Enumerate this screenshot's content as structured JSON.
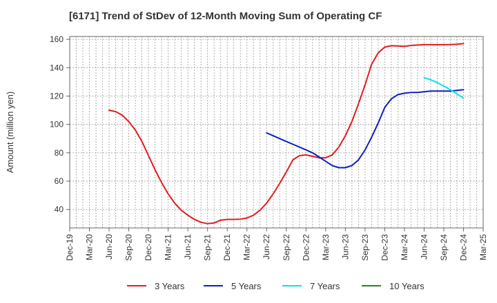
{
  "chart_data": {
    "type": "line",
    "title": "[6171]  Trend of StDev of 12-Month Moving Sum of Operating CF",
    "xlabel": "",
    "ylabel": "Amount (million yen)",
    "ylim": [
      27,
      162
    ],
    "yticks": [
      40,
      60,
      80,
      100,
      120,
      140,
      160
    ],
    "x_tick_labels": [
      "Dec-19",
      "Mar-20",
      "Jun-20",
      "Sep-20",
      "Dec-20",
      "Mar-21",
      "Jun-21",
      "Sep-21",
      "Dec-21",
      "Mar-22",
      "Jun-22",
      "Sep-22",
      "Dec-22",
      "Mar-23",
      "Jun-23",
      "Sep-23",
      "Dec-23",
      "Mar-24",
      "Jun-24",
      "Sep-24",
      "Dec-24",
      "Mar-25"
    ],
    "x_start": "2019-12",
    "x_end": "2025-03",
    "grid": true,
    "legend_position": "bottom",
    "series": [
      {
        "name": "3 Years",
        "color": "#e31a1c",
        "x": [
          "2020-06",
          "2020-07",
          "2020-08",
          "2020-09",
          "2020-10",
          "2020-11",
          "2020-12",
          "2021-01",
          "2021-02",
          "2021-03",
          "2021-04",
          "2021-05",
          "2021-06",
          "2021-07",
          "2021-08",
          "2021-09",
          "2021-10",
          "2021-11",
          "2021-12",
          "2022-01",
          "2022-02",
          "2022-03",
          "2022-04",
          "2022-05",
          "2022-06",
          "2022-07",
          "2022-08",
          "2022-09",
          "2022-10",
          "2022-11",
          "2022-12",
          "2023-01",
          "2023-02",
          "2023-03",
          "2023-04",
          "2023-05",
          "2023-06",
          "2023-07",
          "2023-08",
          "2023-09",
          "2023-10",
          "2023-11",
          "2023-12",
          "2024-01",
          "2024-02",
          "2024-03",
          "2024-04",
          "2024-05",
          "2024-06",
          "2024-07",
          "2024-08",
          "2024-09",
          "2024-10",
          "2024-11",
          "2024-12"
        ],
        "values": [
          110,
          109,
          106.5,
          102,
          96,
          88,
          78,
          68,
          59,
          51,
          44.5,
          39.5,
          36,
          33,
          31,
          30,
          30.5,
          32.5,
          33,
          33,
          33.2,
          34,
          36,
          39.5,
          44.5,
          51,
          58.5,
          66.5,
          75,
          78,
          78.5,
          77.5,
          76.5,
          76.5,
          78.5,
          84,
          92,
          102,
          114.5,
          128,
          142.5,
          150.5,
          154.5,
          155.5,
          155.3,
          155,
          155.7,
          156,
          156.2,
          156.2,
          156.2,
          156.2,
          156.3,
          156.5,
          157
        ]
      },
      {
        "name": "5 Years",
        "color": "#0a1fbf",
        "x": [
          "2022-06",
          "2022-07",
          "2022-08",
          "2022-09",
          "2022-10",
          "2022-11",
          "2022-12",
          "2023-01",
          "2023-02",
          "2023-03",
          "2023-04",
          "2023-05",
          "2023-06",
          "2023-07",
          "2023-08",
          "2023-09",
          "2023-10",
          "2023-11",
          "2023-12",
          "2024-01",
          "2024-02",
          "2024-03",
          "2024-04",
          "2024-05",
          "2024-06",
          "2024-07",
          "2024-08",
          "2024-09",
          "2024-10",
          "2024-11",
          "2024-12"
        ],
        "values": [
          94,
          92,
          90,
          88,
          86,
          84,
          82,
          80,
          77,
          74,
          71,
          69.5,
          69.5,
          71,
          75,
          82,
          91,
          101,
          112,
          118,
          121,
          122,
          122.5,
          122.5,
          123,
          123.5,
          123.5,
          123.5,
          123.5,
          124,
          124.5
        ]
      },
      {
        "name": "7 Years",
        "color": "#00e5ee",
        "x": [
          "2024-06",
          "2024-07",
          "2024-08",
          "2024-09",
          "2024-10",
          "2024-11",
          "2024-12"
        ],
        "values": [
          133,
          131.5,
          129.5,
          127,
          124.5,
          121.5,
          118.5
        ]
      },
      {
        "name": "10 Years",
        "color": "#1a8a1a",
        "x": [],
        "values": []
      }
    ]
  }
}
